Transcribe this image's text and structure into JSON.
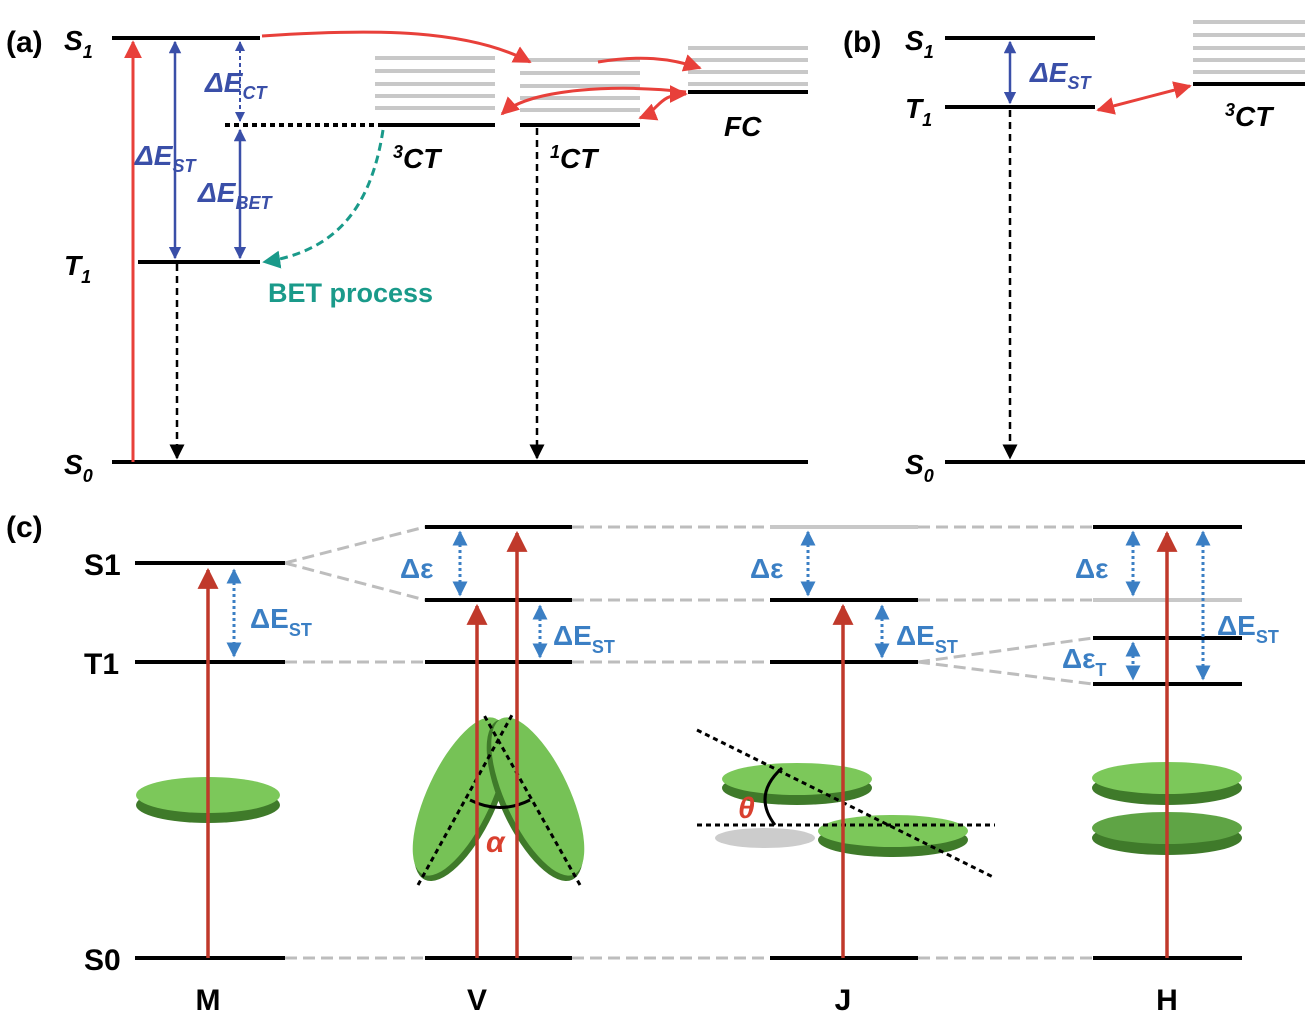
{
  "panel_a": {
    "label": "(a)",
    "levels": {
      "s1": {
        "base": "S",
        "sub": "1"
      },
      "t1": {
        "base": "T",
        "sub": "1"
      },
      "s0": {
        "base": "S",
        "sub": "0"
      }
    },
    "gaps": {
      "ct": {
        "base": "ΔE",
        "sub": "CT"
      },
      "st": {
        "base": "ΔE",
        "sub": "ST"
      },
      "bet": {
        "base": "ΔE",
        "sub": "BET"
      }
    },
    "states": {
      "triplet_ct": {
        "sup": "3",
        "base": "CT"
      },
      "singlet_ct": {
        "sup": "1",
        "base": "CT"
      },
      "fc": "FC"
    },
    "annotation": "BET process"
  },
  "panel_b": {
    "label": "(b)",
    "levels": {
      "s1": {
        "base": "S",
        "sub": "1"
      },
      "t1": {
        "base": "T",
        "sub": "1"
      },
      "s0": {
        "base": "S",
        "sub": "0"
      }
    },
    "gap": {
      "base": "ΔE",
      "sub": "ST"
    },
    "state": {
      "sup": "3",
      "base": "CT"
    }
  },
  "panel_c": {
    "label": "(c)",
    "levels": [
      "S1",
      "T1",
      "S0"
    ],
    "gaps": {
      "de": "Δε",
      "est": {
        "base": "ΔE",
        "sub": "ST"
      },
      "det": {
        "base": "Δε",
        "sub": "T"
      }
    },
    "angles": [
      "α",
      "θ"
    ],
    "aggregates": [
      "M",
      "V",
      "J",
      "H"
    ]
  }
}
